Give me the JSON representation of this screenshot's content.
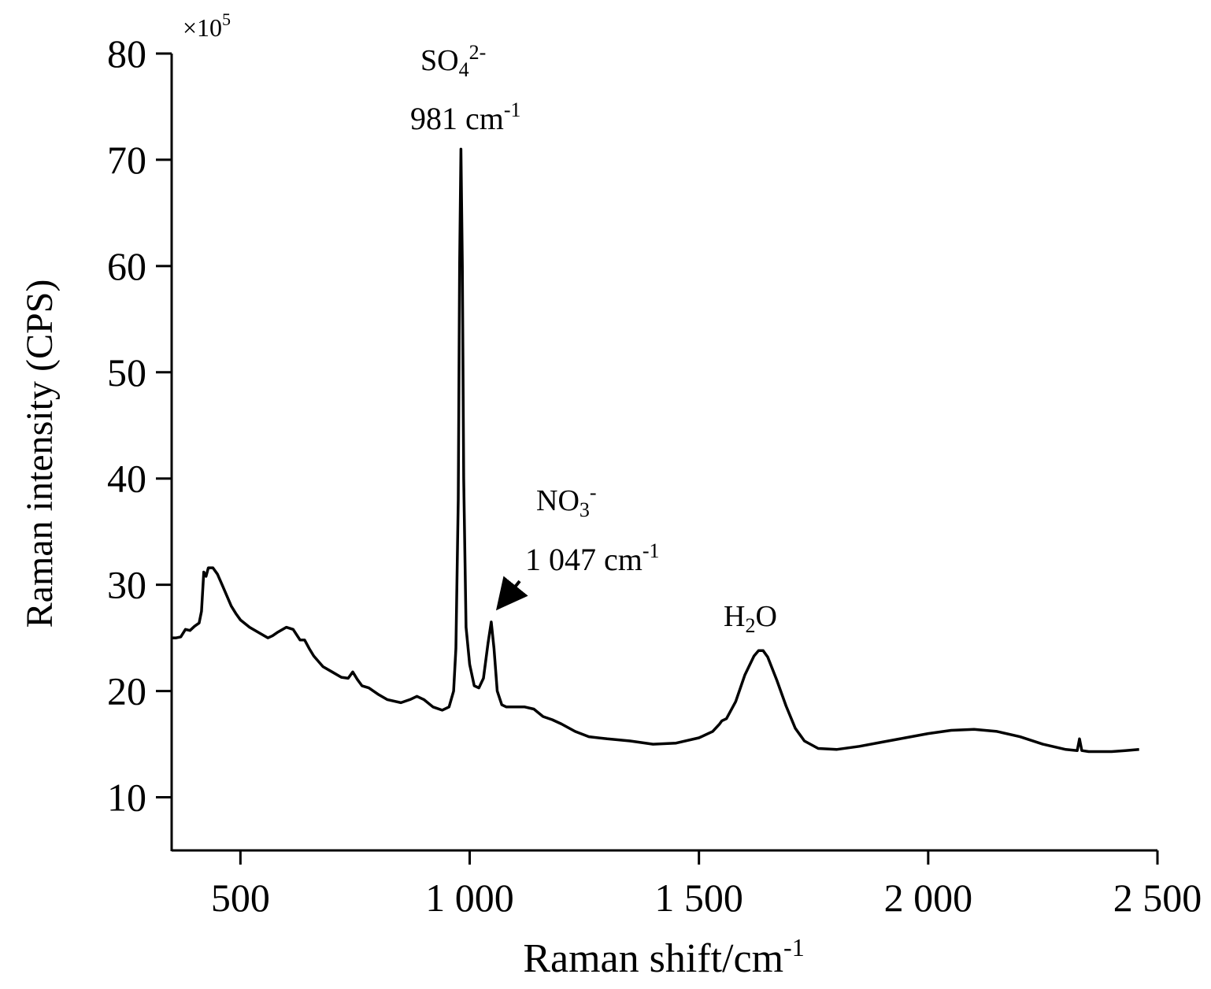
{
  "chart_data": {
    "type": "line",
    "xlabel": "Raman shift/cm",
    "xlabel_sup": "-1",
    "ylabel": "Raman intensity (CPS)",
    "y_multiplier": "×10",
    "y_multiplier_exp": "5",
    "xlim": [
      350,
      2500
    ],
    "ylim": [
      5,
      80
    ],
    "xticks": [
      {
        "value": 500,
        "label": "500"
      },
      {
        "value": 1000,
        "label": "1 000"
      },
      {
        "value": 1500,
        "label": "1 500"
      },
      {
        "value": 2000,
        "label": "2 000"
      },
      {
        "value": 2500,
        "label": "2 500"
      }
    ],
    "yticks": [
      {
        "value": 10,
        "label": "10"
      },
      {
        "value": 20,
        "label": "20"
      },
      {
        "value": 30,
        "label": "30"
      },
      {
        "value": 40,
        "label": "40"
      },
      {
        "value": 50,
        "label": "50"
      },
      {
        "value": 60,
        "label": "60"
      },
      {
        "value": 70,
        "label": "70"
      },
      {
        "value": 80,
        "label": "80"
      }
    ],
    "grid": false,
    "series": [
      {
        "color": "#000000",
        "points": [
          [
            350,
            25.0
          ],
          [
            360,
            25.0
          ],
          [
            370,
            25.1
          ],
          [
            380,
            25.8
          ],
          [
            390,
            25.7
          ],
          [
            400,
            26.1
          ],
          [
            410,
            26.4
          ],
          [
            415,
            27.5
          ],
          [
            420,
            31.2
          ],
          [
            425,
            30.8
          ],
          [
            430,
            31.6
          ],
          [
            440,
            31.6
          ],
          [
            450,
            31.0
          ],
          [
            460,
            30.0
          ],
          [
            470,
            29.0
          ],
          [
            480,
            28.0
          ],
          [
            490,
            27.3
          ],
          [
            500,
            26.7
          ],
          [
            520,
            26.0
          ],
          [
            540,
            25.5
          ],
          [
            560,
            25.0
          ],
          [
            570,
            25.2
          ],
          [
            580,
            25.5
          ],
          [
            600,
            26.0
          ],
          [
            615,
            25.8
          ],
          [
            630,
            24.8
          ],
          [
            640,
            24.8
          ],
          [
            650,
            24.0
          ],
          [
            660,
            23.3
          ],
          [
            680,
            22.3
          ],
          [
            700,
            21.8
          ],
          [
            720,
            21.3
          ],
          [
            735,
            21.2
          ],
          [
            745,
            21.8
          ],
          [
            755,
            21.1
          ],
          [
            765,
            20.5
          ],
          [
            780,
            20.3
          ],
          [
            800,
            19.7
          ],
          [
            820,
            19.2
          ],
          [
            850,
            18.9
          ],
          [
            870,
            19.2
          ],
          [
            885,
            19.5
          ],
          [
            900,
            19.2
          ],
          [
            920,
            18.5
          ],
          [
            940,
            18.2
          ],
          [
            955,
            18.5
          ],
          [
            965,
            20.0
          ],
          [
            970,
            24.0
          ],
          [
            975,
            38.0
          ],
          [
            978,
            60.0
          ],
          [
            981,
            71.0
          ],
          [
            984,
            60.0
          ],
          [
            987,
            40.0
          ],
          [
            992,
            26.0
          ],
          [
            1000,
            22.5
          ],
          [
            1010,
            20.5
          ],
          [
            1020,
            20.3
          ],
          [
            1030,
            21.2
          ],
          [
            1040,
            24.5
          ],
          [
            1047,
            26.5
          ],
          [
            1053,
            24.0
          ],
          [
            1060,
            20.0
          ],
          [
            1070,
            18.7
          ],
          [
            1080,
            18.5
          ],
          [
            1100,
            18.5
          ],
          [
            1120,
            18.5
          ],
          [
            1140,
            18.3
          ],
          [
            1160,
            17.6
          ],
          [
            1180,
            17.3
          ],
          [
            1200,
            16.9
          ],
          [
            1230,
            16.2
          ],
          [
            1260,
            15.7
          ],
          [
            1300,
            15.5
          ],
          [
            1350,
            15.3
          ],
          [
            1400,
            15.0
          ],
          [
            1450,
            15.1
          ],
          [
            1500,
            15.6
          ],
          [
            1530,
            16.2
          ],
          [
            1545,
            16.9
          ],
          [
            1550,
            17.2
          ],
          [
            1560,
            17.4
          ],
          [
            1580,
            19.0
          ],
          [
            1600,
            21.5
          ],
          [
            1620,
            23.3
          ],
          [
            1630,
            23.8
          ],
          [
            1640,
            23.8
          ],
          [
            1650,
            23.2
          ],
          [
            1670,
            21.0
          ],
          [
            1690,
            18.6
          ],
          [
            1710,
            16.5
          ],
          [
            1730,
            15.3
          ],
          [
            1760,
            14.6
          ],
          [
            1800,
            14.5
          ],
          [
            1850,
            14.8
          ],
          [
            1900,
            15.2
          ],
          [
            1950,
            15.6
          ],
          [
            2000,
            16.0
          ],
          [
            2050,
            16.3
          ],
          [
            2100,
            16.4
          ],
          [
            2150,
            16.2
          ],
          [
            2200,
            15.7
          ],
          [
            2250,
            15.0
          ],
          [
            2300,
            14.5
          ],
          [
            2325,
            14.4
          ],
          [
            2330,
            15.5
          ],
          [
            2335,
            14.4
          ],
          [
            2350,
            14.3
          ],
          [
            2400,
            14.3
          ],
          [
            2430,
            14.4
          ],
          [
            2460,
            14.5
          ]
        ]
      }
    ],
    "annotations": [
      {
        "id": "so4",
        "base": "SO",
        "sub": "4",
        "sup": "2-"
      },
      {
        "id": "so4_pos",
        "text": "981 cm",
        "sup": "-1"
      },
      {
        "id": "no3",
        "base": "NO",
        "sub": "3",
        "sup": "-"
      },
      {
        "id": "no3_pos",
        "text": "1 047 cm",
        "sup": "-1"
      },
      {
        "id": "h2o",
        "pre": "H",
        "sub": "2",
        "post": "O"
      }
    ]
  }
}
